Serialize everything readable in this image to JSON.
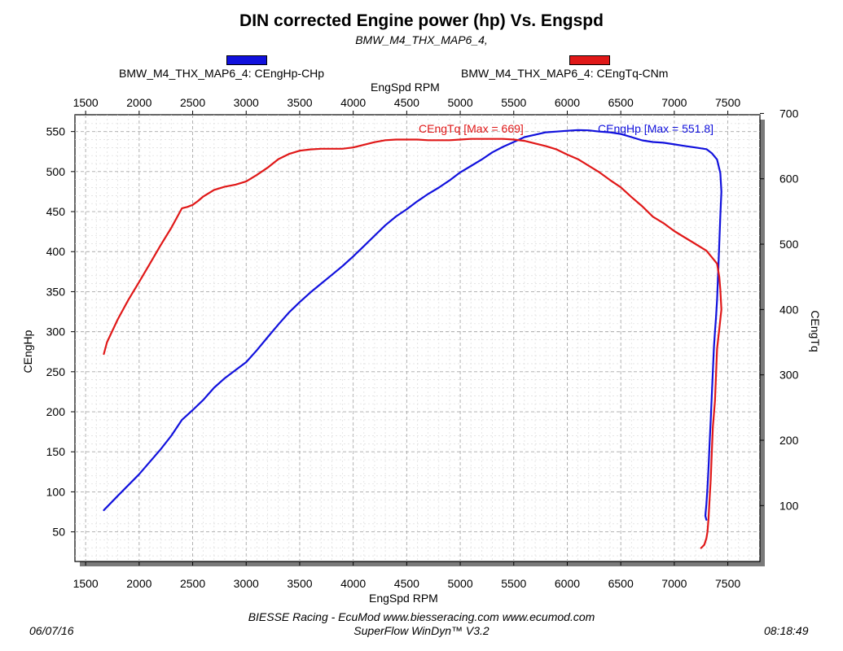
{
  "header": {
    "title": "DIN corrected Engine power (hp) Vs. Engspd",
    "subtitle": "BMW_M4_THX_MAP6_4,"
  },
  "legend": [
    {
      "label": "BMW_M4_THX_MAP6_4: CEngHp-CHp",
      "color": "#1111dd"
    },
    {
      "label": "BMW_M4_THX_MAP6_4: CEngTq-CNm",
      "color": "#e01818"
    }
  ],
  "footer": {
    "left": "06/07/16",
    "center_line1": "BIESSE Racing - EcuMod www.biesseracing.com www.ecumod.com",
    "center_line2": "SuperFlow WinDyn™ V3.2",
    "right": "08:18:49"
  },
  "chart_data": {
    "type": "line",
    "title": "DIN corrected Engine power (hp) Vs. Engspd",
    "subtitle": "BMW_M4_THX_MAP6_4,",
    "xlabel_top": "EngSpd RPM",
    "xlabel": "EngSpd RPM",
    "ylabel": "CEngHp",
    "y2label": "CEngTq",
    "xlim": [
      1400,
      7800
    ],
    "ylim": [
      13,
      571
    ],
    "y2lim": [
      14.5,
      698
    ],
    "x_ticks": [
      1500,
      2000,
      2500,
      3000,
      3500,
      4000,
      4500,
      5000,
      5500,
      6000,
      6500,
      7000,
      7500
    ],
    "y_ticks": [
      50,
      100,
      150,
      200,
      250,
      300,
      350,
      400,
      450,
      500,
      550
    ],
    "y2_ticks": [
      100,
      200,
      300,
      400,
      500,
      600,
      700
    ],
    "grid": true,
    "legend_position": "top",
    "series": [
      {
        "name": "BMW_M4_THX_MAP6_4: CEngHp-CHp",
        "axis": "left",
        "color": "#1111dd",
        "annotation": "CEngHp [Max = 551.8]",
        "x": [
          1670,
          1800,
          2000,
          2200,
          2300,
          2400,
          2500,
          2600,
          2700,
          2800,
          2900,
          3000,
          3100,
          3200,
          3300,
          3400,
          3500,
          3600,
          3700,
          3800,
          3900,
          4000,
          4100,
          4200,
          4300,
          4400,
          4500,
          4600,
          4700,
          4800,
          4900,
          5000,
          5100,
          5200,
          5300,
          5400,
          5500,
          5600,
          5700,
          5800,
          5900,
          6000,
          6100,
          6200,
          6300,
          6400,
          6500,
          6600,
          6700,
          6800,
          6900,
          7000,
          7100,
          7200,
          7300,
          7350,
          7400,
          7430,
          7440,
          7430,
          7420,
          7410,
          7400,
          7390,
          7380,
          7370,
          7360,
          7350,
          7340,
          7330,
          7320,
          7310,
          7300,
          7290,
          7300
        ],
        "y": [
          77,
          95,
          122,
          153,
          170,
          190,
          202,
          215,
          230,
          242,
          252,
          262,
          277,
          293,
          309,
          324,
          337,
          349,
          360,
          371,
          382,
          394,
          407,
          420,
          433,
          444,
          453,
          463,
          472,
          480,
          489,
          499,
          507,
          515,
          524,
          531,
          537,
          543,
          546,
          549,
          550,
          551,
          551.8,
          551.5,
          550,
          549,
          547,
          543,
          539,
          537,
          536,
          534,
          532,
          530,
          528,
          523,
          515,
          498,
          475,
          445,
          410,
          375,
          340,
          318,
          300,
          280,
          250,
          220,
          190,
          160,
          130,
          105,
          85,
          70,
          65
        ]
      },
      {
        "name": "BMW_M4_THX_MAP6_4: CEngTq-CNm",
        "axis": "right",
        "color": "#e01818",
        "annotation": "CEngTq [Max = 669]",
        "x": [
          1670,
          1700,
          1800,
          1900,
          2000,
          2100,
          2200,
          2300,
          2400,
          2450,
          2500,
          2550,
          2600,
          2700,
          2800,
          2900,
          3000,
          3100,
          3200,
          3300,
          3400,
          3500,
          3600,
          3700,
          3800,
          3900,
          4000,
          4100,
          4200,
          4300,
          4400,
          4500,
          4600,
          4700,
          4800,
          4900,
          5000,
          5100,
          5200,
          5300,
          5400,
          5500,
          5600,
          5700,
          5800,
          5900,
          6000,
          6100,
          6200,
          6300,
          6400,
          6500,
          6600,
          6700,
          6800,
          6900,
          7000,
          7100,
          7200,
          7300,
          7350,
          7400,
          7420,
          7430,
          7440,
          7420,
          7400,
          7390,
          7380,
          7370,
          7360,
          7350,
          7340,
          7330,
          7320,
          7310,
          7300,
          7280,
          7250
        ],
        "y": [
          332,
          350,
          385,
          415,
          442,
          470,
          498,
          525,
          555,
          557,
          560,
          566,
          573,
          583,
          588,
          591,
          596,
          606,
          617,
          630,
          638,
          643,
          645,
          646,
          646,
          646,
          648,
          652,
          656,
          659,
          660,
          660,
          660,
          659,
          659,
          659,
          660,
          661,
          661,
          661,
          661,
          660,
          658,
          654,
          650,
          645,
          637,
          630,
          620,
          610,
          598,
          587,
          572,
          558,
          542,
          532,
          520,
          510,
          500,
          490,
          480,
          470,
          450,
          430,
          400,
          370,
          340,
          300,
          260,
          240,
          220,
          180,
          140,
          110,
          80,
          60,
          50,
          40,
          35
        ]
      }
    ]
  }
}
